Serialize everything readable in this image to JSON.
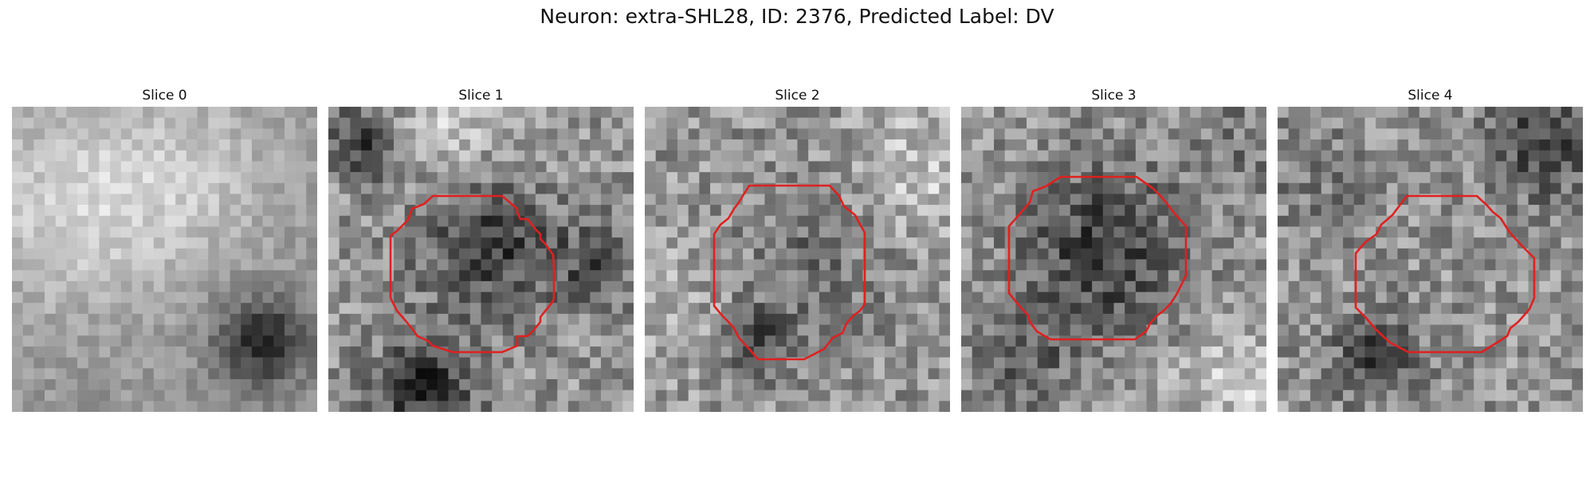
{
  "figure": {
    "title": "Neuron: extra-SHL28, ID: 2376, Predicted Label: DV"
  },
  "panels": [
    {
      "title": "Slice 0",
      "has_contour": false
    },
    {
      "title": "Slice 1",
      "has_contour": true
    },
    {
      "title": "Slice 2",
      "has_contour": true
    },
    {
      "title": "Slice 3",
      "has_contour": true
    },
    {
      "title": "Slice 4",
      "has_contour": true
    }
  ],
  "colors": {
    "contour": "#e02020",
    "background": "#ffffff"
  },
  "image": {
    "grid": "28x28",
    "colormap": "grayscale"
  }
}
